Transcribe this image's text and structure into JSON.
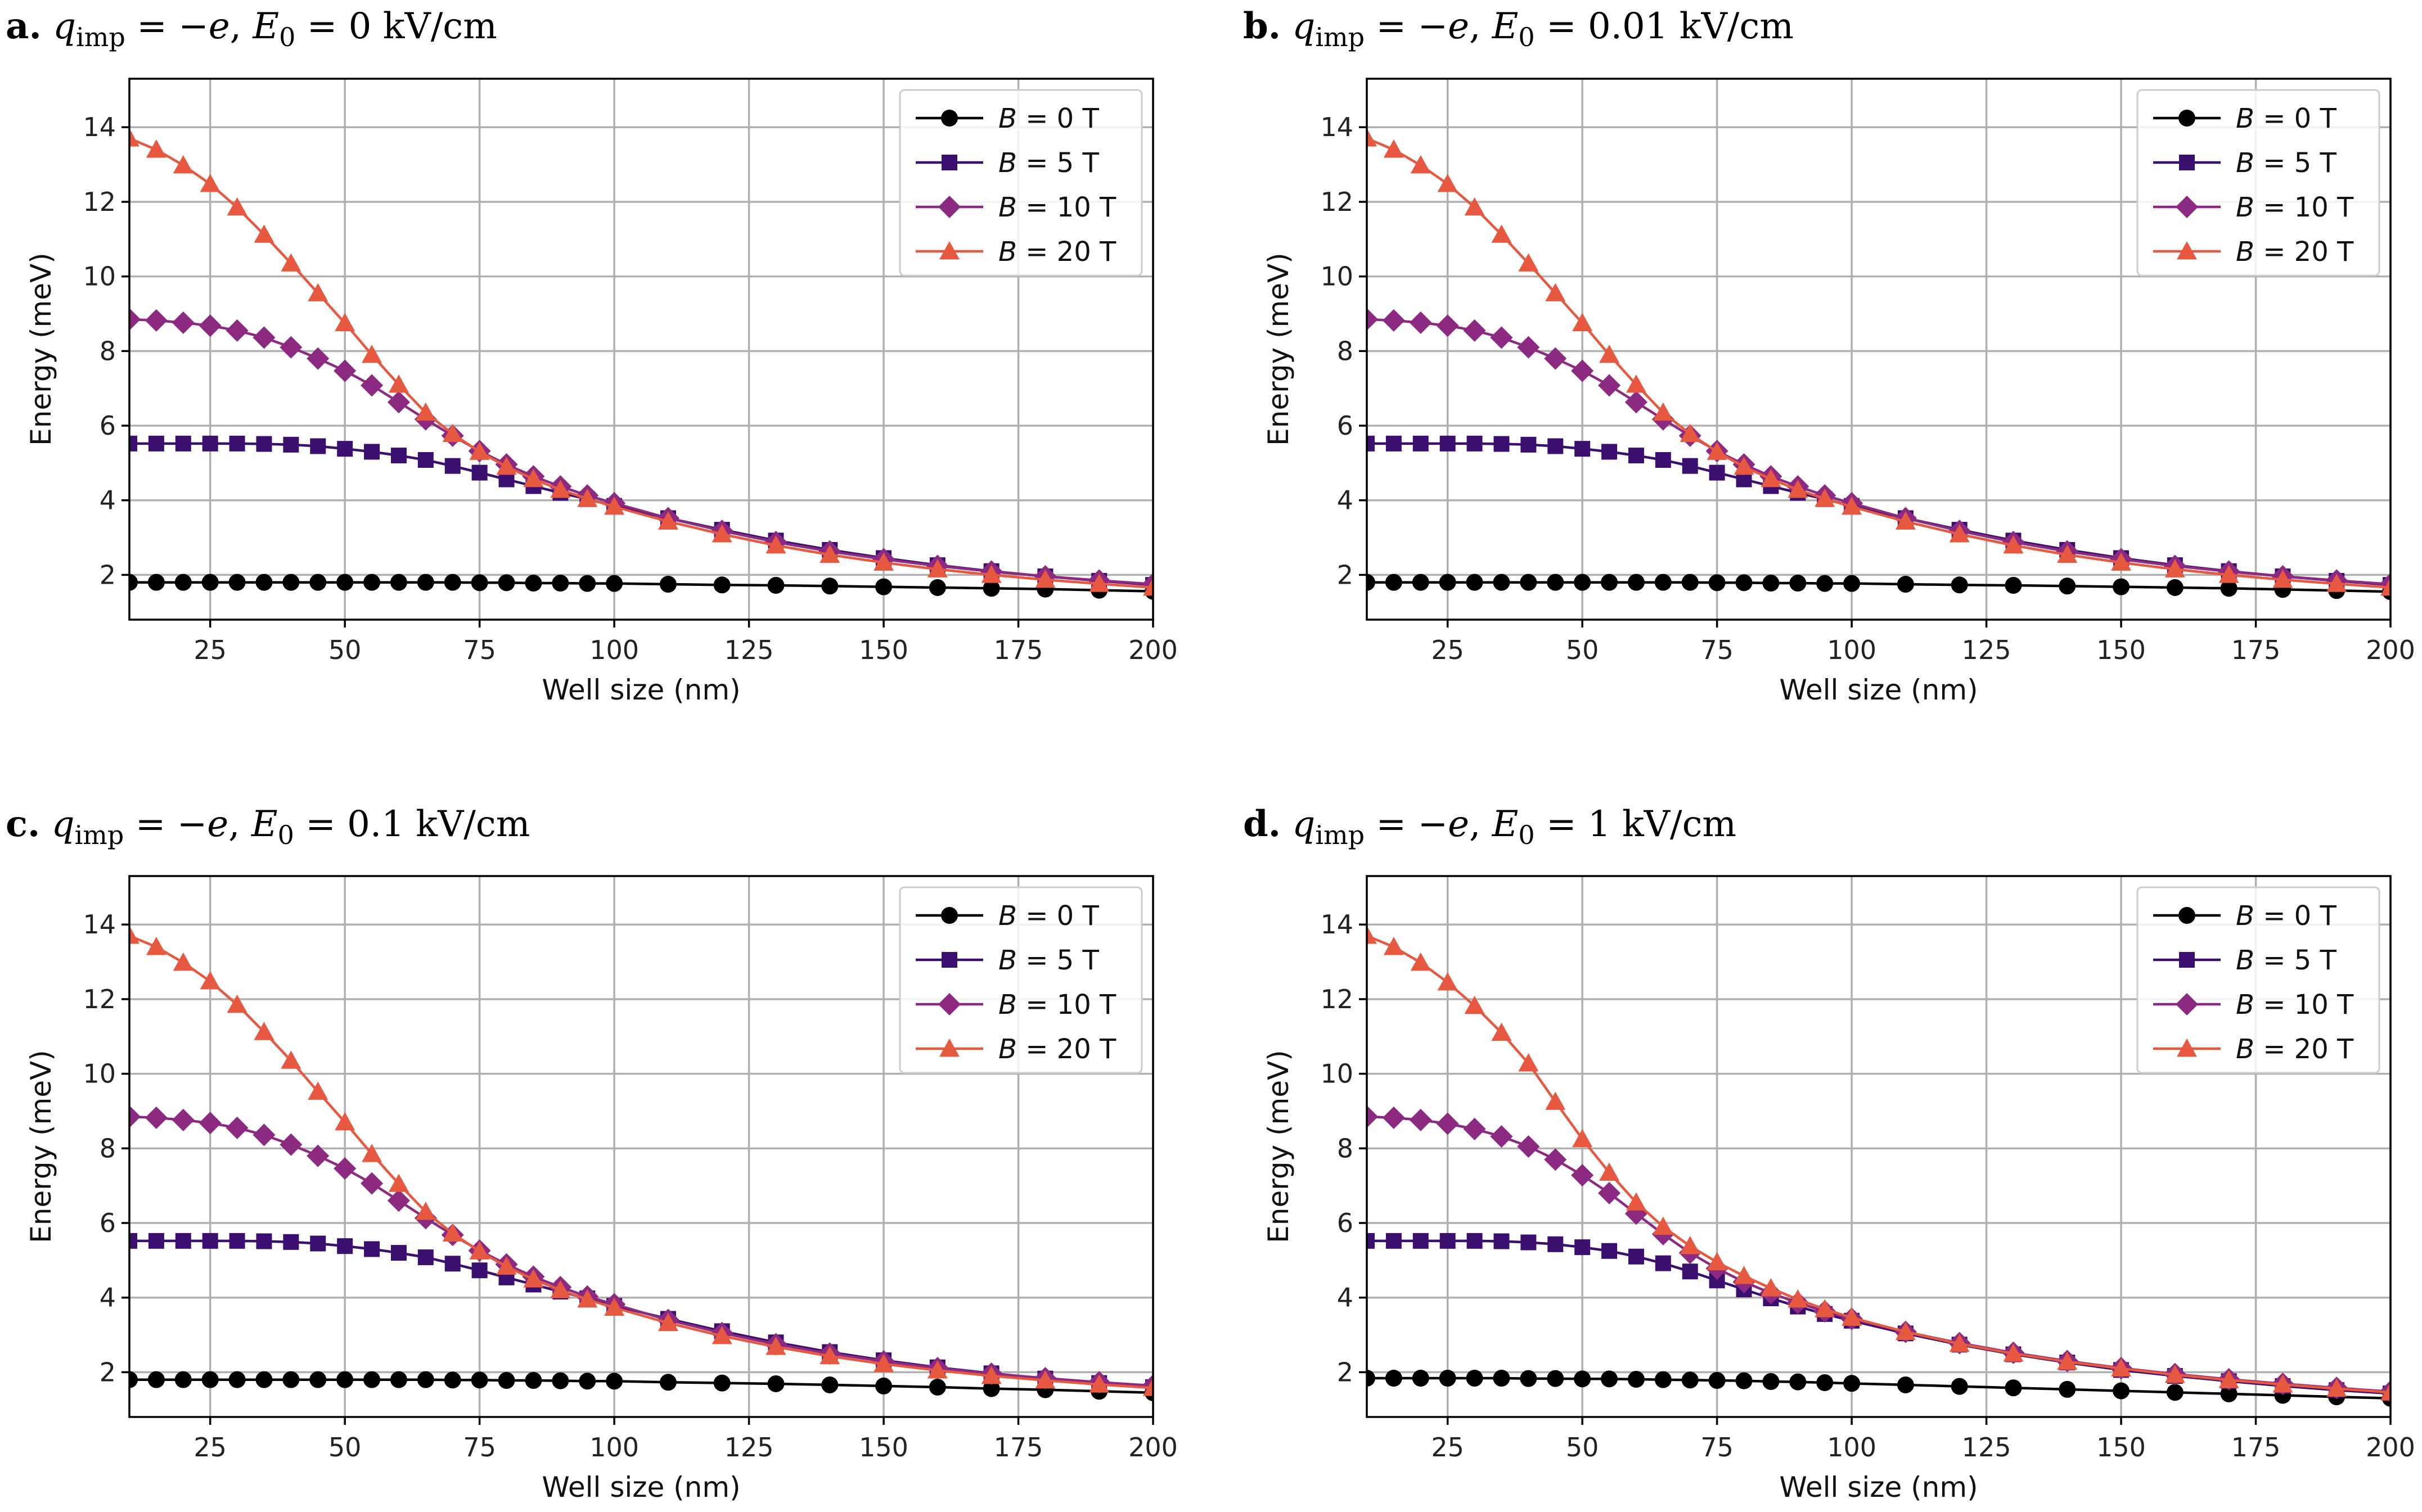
{
  "chart_data": [
    {
      "type": "line",
      "title": {
        "label": "a.",
        "text": "q_imp = −e, E_0 = 0 kV/cm",
        "E0": "0"
      },
      "xlabel": "Well size (nm)",
      "ylabel": "Energy (meV)",
      "xlim": [
        10,
        200
      ],
      "ylim": [
        0.8,
        15.3
      ],
      "xticks": [
        25,
        50,
        75,
        100,
        125,
        150,
        175,
        200
      ],
      "yticks": [
        2,
        4,
        6,
        8,
        10,
        12,
        14
      ],
      "x": [
        10,
        15,
        20,
        25,
        30,
        35,
        40,
        45,
        50,
        55,
        60,
        65,
        70,
        75,
        80,
        85,
        90,
        95,
        100,
        110,
        120,
        130,
        140,
        150,
        160,
        170,
        180,
        190,
        200
      ],
      "series": [
        {
          "name": "B = 0 T",
          "B": "0",
          "color": "#000000",
          "marker": "circle",
          "values": [
            1.8,
            1.8,
            1.8,
            1.8,
            1.8,
            1.8,
            1.8,
            1.8,
            1.8,
            1.8,
            1.8,
            1.8,
            1.8,
            1.79,
            1.79,
            1.78,
            1.78,
            1.77,
            1.77,
            1.75,
            1.73,
            1.72,
            1.7,
            1.68,
            1.66,
            1.64,
            1.62,
            1.59,
            1.56
          ]
        },
        {
          "name": "B = 5 T",
          "B": "5",
          "color": "#3b0f70",
          "marker": "square",
          "values": [
            5.52,
            5.52,
            5.52,
            5.52,
            5.52,
            5.51,
            5.49,
            5.45,
            5.38,
            5.3,
            5.2,
            5.08,
            4.92,
            4.74,
            4.56,
            4.38,
            4.2,
            4.03,
            3.85,
            3.52,
            3.21,
            2.92,
            2.67,
            2.45,
            2.26,
            2.1,
            1.96,
            1.84,
            1.73
          ]
        },
        {
          "name": "B = 10 T",
          "B": "10",
          "color": "#8c2981",
          "marker": "diamond",
          "values": [
            8.85,
            8.82,
            8.76,
            8.68,
            8.55,
            8.36,
            8.1,
            7.8,
            7.47,
            7.08,
            6.63,
            6.17,
            5.73,
            5.32,
            4.96,
            4.64,
            4.37,
            4.13,
            3.92,
            3.52,
            3.18,
            2.88,
            2.63,
            2.42,
            2.24,
            2.09,
            1.96,
            1.85,
            1.75
          ]
        },
        {
          "name": "B = 20 T",
          "B": "20",
          "color": "#e6583f",
          "marker": "triangle",
          "values": [
            13.7,
            13.4,
            12.98,
            12.48,
            11.85,
            11.12,
            10.35,
            9.55,
            8.75,
            7.9,
            7.1,
            6.35,
            5.78,
            5.3,
            4.9,
            4.57,
            4.28,
            4.04,
            3.83,
            3.43,
            3.09,
            2.79,
            2.54,
            2.33,
            2.15,
            2.0,
            1.87,
            1.76,
            1.66
          ]
        }
      ]
    },
    {
      "type": "line",
      "title": {
        "label": "b.",
        "text": "q_imp = −e, E_0 = 0.01 kV/cm",
        "E0": "0.01"
      },
      "xlabel": "Well size (nm)",
      "ylabel": "Energy (meV)",
      "xlim": [
        10,
        200
      ],
      "ylim": [
        0.8,
        15.3
      ],
      "xticks": [
        25,
        50,
        75,
        100,
        125,
        150,
        175,
        200
      ],
      "yticks": [
        2,
        4,
        6,
        8,
        10,
        12,
        14
      ],
      "x": [
        10,
        15,
        20,
        25,
        30,
        35,
        40,
        45,
        50,
        55,
        60,
        65,
        70,
        75,
        80,
        85,
        90,
        95,
        100,
        110,
        120,
        130,
        140,
        150,
        160,
        170,
        180,
        190,
        200
      ],
      "series": [
        {
          "name": "B = 0 T",
          "B": "0",
          "color": "#000000",
          "marker": "circle",
          "values": [
            1.8,
            1.8,
            1.8,
            1.8,
            1.8,
            1.8,
            1.8,
            1.8,
            1.8,
            1.8,
            1.8,
            1.8,
            1.8,
            1.79,
            1.79,
            1.78,
            1.78,
            1.77,
            1.77,
            1.75,
            1.73,
            1.72,
            1.7,
            1.68,
            1.66,
            1.64,
            1.61,
            1.58,
            1.55
          ]
        },
        {
          "name": "B = 5 T",
          "B": "5",
          "color": "#3b0f70",
          "marker": "square",
          "values": [
            5.52,
            5.52,
            5.52,
            5.52,
            5.52,
            5.51,
            5.49,
            5.45,
            5.38,
            5.3,
            5.2,
            5.08,
            4.92,
            4.74,
            4.56,
            4.38,
            4.2,
            4.03,
            3.85,
            3.52,
            3.21,
            2.92,
            2.67,
            2.45,
            2.26,
            2.1,
            1.96,
            1.84,
            1.73
          ]
        },
        {
          "name": "B = 10 T",
          "B": "10",
          "color": "#8c2981",
          "marker": "diamond",
          "values": [
            8.85,
            8.82,
            8.76,
            8.68,
            8.55,
            8.36,
            8.1,
            7.8,
            7.47,
            7.08,
            6.63,
            6.17,
            5.73,
            5.32,
            4.96,
            4.64,
            4.37,
            4.13,
            3.92,
            3.52,
            3.18,
            2.88,
            2.63,
            2.42,
            2.24,
            2.09,
            1.96,
            1.85,
            1.75
          ]
        },
        {
          "name": "B = 20 T",
          "B": "20",
          "color": "#e6583f",
          "marker": "triangle",
          "values": [
            13.7,
            13.4,
            12.98,
            12.48,
            11.85,
            11.12,
            10.35,
            9.55,
            8.75,
            7.9,
            7.1,
            6.35,
            5.78,
            5.3,
            4.9,
            4.57,
            4.28,
            4.04,
            3.83,
            3.43,
            3.09,
            2.79,
            2.54,
            2.33,
            2.15,
            2.0,
            1.87,
            1.76,
            1.66
          ]
        }
      ]
    },
    {
      "type": "line",
      "title": {
        "label": "c.",
        "text": "q_imp = −e, E_0 = 0.1 kV/cm",
        "E0": "0.1"
      },
      "xlabel": "Well size (nm)",
      "ylabel": "Energy (meV)",
      "xlim": [
        10,
        200
      ],
      "ylim": [
        0.8,
        15.3
      ],
      "xticks": [
        25,
        50,
        75,
        100,
        125,
        150,
        175,
        200
      ],
      "yticks": [
        2,
        4,
        6,
        8,
        10,
        12,
        14
      ],
      "x": [
        10,
        15,
        20,
        25,
        30,
        35,
        40,
        45,
        50,
        55,
        60,
        65,
        70,
        75,
        80,
        85,
        90,
        95,
        100,
        110,
        120,
        130,
        140,
        150,
        160,
        170,
        180,
        190,
        200
      ],
      "series": [
        {
          "name": "B = 0 T",
          "B": "0",
          "color": "#000000",
          "marker": "circle",
          "values": [
            1.8,
            1.8,
            1.8,
            1.8,
            1.8,
            1.8,
            1.8,
            1.8,
            1.8,
            1.8,
            1.8,
            1.8,
            1.79,
            1.79,
            1.78,
            1.78,
            1.77,
            1.76,
            1.76,
            1.73,
            1.71,
            1.69,
            1.66,
            1.63,
            1.6,
            1.56,
            1.53,
            1.49,
            1.45
          ]
        },
        {
          "name": "B = 5 T",
          "B": "5",
          "color": "#3b0f70",
          "marker": "square",
          "values": [
            5.52,
            5.52,
            5.52,
            5.52,
            5.52,
            5.51,
            5.49,
            5.45,
            5.38,
            5.3,
            5.2,
            5.08,
            4.91,
            4.73,
            4.54,
            4.35,
            4.16,
            3.98,
            3.78,
            3.43,
            3.1,
            2.8,
            2.54,
            2.32,
            2.13,
            1.97,
            1.83,
            1.71,
            1.6
          ]
        },
        {
          "name": "B = 10 T",
          "B": "10",
          "color": "#8c2981",
          "marker": "diamond",
          "values": [
            8.85,
            8.82,
            8.76,
            8.68,
            8.55,
            8.36,
            8.1,
            7.8,
            7.46,
            7.06,
            6.6,
            6.13,
            5.68,
            5.26,
            4.89,
            4.56,
            4.28,
            4.03,
            3.82,
            3.4,
            3.05,
            2.75,
            2.5,
            2.29,
            2.11,
            1.96,
            1.84,
            1.73,
            1.64
          ]
        },
        {
          "name": "B = 20 T",
          "B": "20",
          "color": "#e6583f",
          "marker": "triangle",
          "values": [
            13.7,
            13.4,
            12.98,
            12.48,
            11.85,
            11.12,
            10.35,
            9.52,
            8.7,
            7.85,
            7.05,
            6.3,
            5.72,
            5.24,
            4.83,
            4.49,
            4.2,
            3.95,
            3.73,
            3.32,
            2.97,
            2.68,
            2.43,
            2.22,
            2.05,
            1.9,
            1.78,
            1.67,
            1.58
          ]
        }
      ]
    },
    {
      "type": "line",
      "title": {
        "label": "d.",
        "text": "q_imp = −e, E_0 = 1 kV/cm",
        "E0": "1"
      },
      "xlabel": "Well size (nm)",
      "ylabel": "Energy (meV)",
      "xlim": [
        10,
        200
      ],
      "ylim": [
        0.8,
        15.3
      ],
      "xticks": [
        25,
        50,
        75,
        100,
        125,
        150,
        175,
        200
      ],
      "yticks": [
        2,
        4,
        6,
        8,
        10,
        12,
        14
      ],
      "x": [
        10,
        15,
        20,
        25,
        30,
        35,
        40,
        45,
        50,
        55,
        60,
        65,
        70,
        75,
        80,
        85,
        90,
        95,
        100,
        110,
        120,
        130,
        140,
        150,
        160,
        170,
        180,
        190,
        200
      ],
      "series": [
        {
          "name": "B = 0 T",
          "B": "0",
          "color": "#000000",
          "marker": "circle",
          "values": [
            1.84,
            1.84,
            1.84,
            1.84,
            1.84,
            1.84,
            1.83,
            1.83,
            1.82,
            1.82,
            1.81,
            1.8,
            1.79,
            1.78,
            1.77,
            1.75,
            1.74,
            1.72,
            1.7,
            1.66,
            1.62,
            1.58,
            1.54,
            1.5,
            1.46,
            1.42,
            1.38,
            1.34,
            1.3
          ]
        },
        {
          "name": "B = 5 T",
          "B": "5",
          "color": "#3b0f70",
          "marker": "square",
          "values": [
            5.52,
            5.52,
            5.52,
            5.52,
            5.52,
            5.51,
            5.48,
            5.43,
            5.35,
            5.25,
            5.1,
            4.92,
            4.7,
            4.46,
            4.22,
            3.98,
            3.76,
            3.56,
            3.38,
            3.04,
            2.74,
            2.48,
            2.26,
            2.06,
            1.9,
            1.76,
            1.63,
            1.52,
            1.43
          ]
        },
        {
          "name": "B = 10 T",
          "B": "10",
          "color": "#8c2981",
          "marker": "diamond",
          "values": [
            8.85,
            8.82,
            8.76,
            8.66,
            8.52,
            8.32,
            8.05,
            7.7,
            7.28,
            6.8,
            6.25,
            5.7,
            5.2,
            4.78,
            4.42,
            4.12,
            3.86,
            3.63,
            3.43,
            3.08,
            2.78,
            2.52,
            2.3,
            2.11,
            1.95,
            1.81,
            1.69,
            1.58,
            1.48
          ]
        },
        {
          "name": "B = 20 T",
          "B": "20",
          "color": "#e6583f",
          "marker": "triangle",
          "values": [
            13.7,
            13.4,
            12.98,
            12.45,
            11.82,
            11.1,
            10.28,
            9.25,
            8.25,
            7.35,
            6.55,
            5.9,
            5.38,
            4.95,
            4.58,
            4.25,
            3.95,
            3.69,
            3.46,
            3.08,
            2.76,
            2.5,
            2.28,
            2.1,
            1.93,
            1.79,
            1.67,
            1.56,
            1.46
          ]
        }
      ]
    }
  ]
}
